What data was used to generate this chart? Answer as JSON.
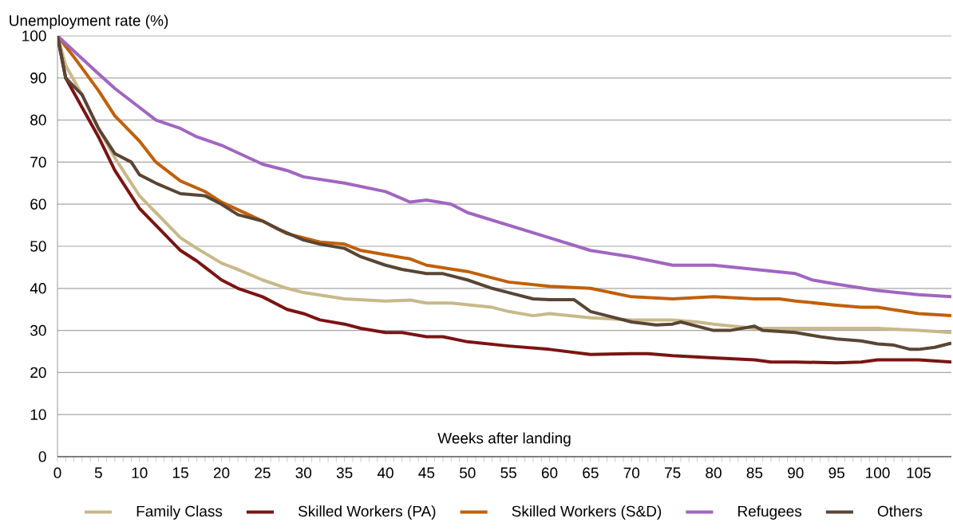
{
  "chart_data": {
    "type": "line",
    "xlabel": "Weeks after landing",
    "ylabel": "Unemployment rate (%)",
    "xlim": [
      0,
      109
    ],
    "ylim": [
      0,
      100
    ],
    "xticks": [
      0,
      5,
      10,
      15,
      20,
      25,
      30,
      35,
      40,
      45,
      50,
      55,
      60,
      65,
      70,
      75,
      80,
      85,
      90,
      95,
      100,
      105
    ],
    "yticks": [
      0,
      10,
      20,
      30,
      40,
      50,
      60,
      70,
      80,
      90,
      100
    ],
    "grid": "y",
    "legend": "bottom",
    "marker": "none",
    "line_style": "solid",
    "series": [
      {
        "name": "Family Class",
        "color": "#c8b98a",
        "x": [
          0,
          1,
          3,
          5,
          7,
          10,
          12,
          15,
          17,
          20,
          22,
          25,
          28,
          30,
          35,
          40,
          43,
          45,
          48,
          53,
          55,
          58,
          60,
          65,
          70,
          75,
          78,
          80,
          85,
          90,
          95,
          100,
          105,
          109
        ],
        "values": [
          100,
          93,
          86,
          78,
          71,
          62,
          58,
          52,
          49.5,
          46,
          44.5,
          42,
          40,
          39,
          37.5,
          37,
          37.2,
          36.5,
          36.5,
          35.5,
          34.5,
          33.5,
          34,
          33,
          32.5,
          32.5,
          32,
          31.5,
          30.5,
          30.5,
          30.5,
          30.5,
          30,
          29.5
        ]
      },
      {
        "name": "Skilled Workers (PA)",
        "color": "#7b1414",
        "x": [
          0,
          1,
          3,
          5,
          7,
          10,
          12,
          15,
          17,
          20,
          22,
          25,
          28,
          30,
          32,
          35,
          37,
          40,
          42,
          45,
          47,
          50,
          55,
          60,
          65,
          70,
          72,
          75,
          80,
          85,
          87,
          90,
          95,
          98,
          100,
          105,
          109
        ],
        "values": [
          100,
          90,
          83,
          76,
          68,
          59,
          55,
          49,
          46.5,
          42,
          40,
          38,
          35,
          34,
          32.5,
          31.5,
          30.5,
          29.5,
          29.5,
          28.5,
          28.5,
          27.3,
          26.3,
          25.5,
          24.3,
          24.5,
          24.5,
          24,
          23.5,
          23,
          22.5,
          22.5,
          22.3,
          22.5,
          23,
          23,
          22.5
        ]
      },
      {
        "name": "Skilled Workers (S&D)",
        "color": "#c0600a",
        "x": [
          0,
          2,
          5,
          7,
          10,
          12,
          15,
          18,
          20,
          25,
          28,
          30,
          32,
          35,
          37,
          40,
          43,
          45,
          50,
          53,
          55,
          60,
          65,
          70,
          75,
          80,
          85,
          88,
          90,
          95,
          98,
          100,
          105,
          109
        ],
        "values": [
          100,
          95,
          87,
          81,
          75,
          70,
          65.5,
          63,
          60.5,
          56,
          53,
          52,
          51,
          50.5,
          49,
          48,
          47,
          45.5,
          44,
          42.5,
          41.5,
          40.5,
          40,
          38,
          37.5,
          38,
          37.5,
          37.5,
          37,
          36,
          35.5,
          35.5,
          34,
          33.5
        ]
      },
      {
        "name": "Refugees",
        "color": "#a066c0",
        "x": [
          0,
          5,
          7,
          10,
          12,
          15,
          17,
          20,
          25,
          28,
          30,
          35,
          40,
          43,
          45,
          48,
          50,
          55,
          60,
          65,
          70,
          75,
          80,
          85,
          90,
          92,
          95,
          100,
          105,
          109
        ],
        "values": [
          100,
          91,
          87.5,
          83,
          80,
          78,
          76,
          74,
          69.5,
          68,
          66.5,
          65,
          63,
          60.5,
          61,
          60,
          58,
          55,
          52,
          49,
          47.5,
          45.5,
          45.5,
          44.5,
          43.5,
          42,
          41,
          39.5,
          38.5,
          38
        ]
      },
      {
        "name": "Others",
        "color": "#5a4535",
        "x": [
          0,
          1,
          3,
          5,
          7,
          9,
          10,
          12,
          15,
          18,
          20,
          22,
          25,
          27,
          30,
          32,
          35,
          37,
          40,
          42,
          45,
          47,
          50,
          53,
          55,
          58,
          60,
          63,
          65,
          67,
          70,
          73,
          75,
          76,
          80,
          82,
          85,
          86,
          90,
          93,
          95,
          98,
          100,
          102,
          104,
          105,
          107,
          109
        ],
        "values": [
          100,
          90,
          86,
          78,
          72,
          70,
          67,
          65,
          62.5,
          62,
          60,
          57.5,
          56,
          54,
          51.5,
          50.5,
          49.5,
          47.5,
          45.5,
          44.5,
          43.5,
          43.5,
          42,
          40,
          39,
          37.5,
          37.3,
          37.3,
          34.5,
          33.5,
          32,
          31.3,
          31.5,
          32,
          30,
          30,
          31,
          30,
          29.5,
          28.5,
          28,
          27.5,
          26.8,
          26.5,
          25.5,
          25.5,
          26,
          27
        ]
      }
    ]
  }
}
